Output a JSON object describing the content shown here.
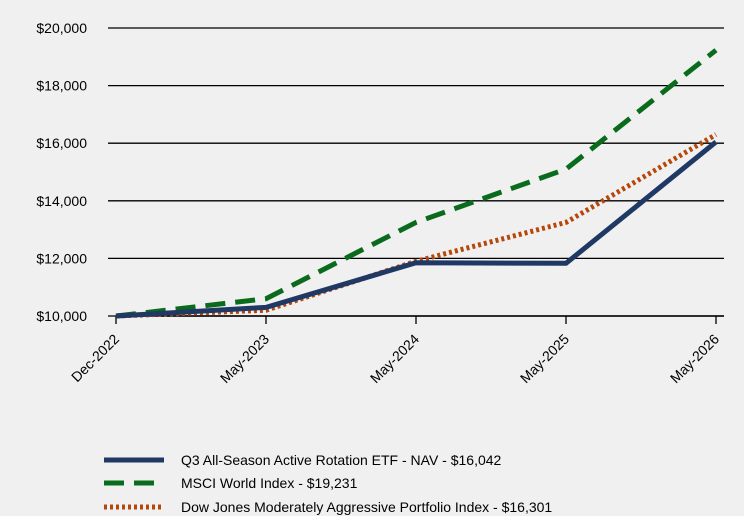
{
  "chart_data": {
    "type": "line",
    "title": "",
    "xlabel": "",
    "ylabel": "",
    "categories": [
      "Dec-2022",
      "May-2023",
      "May-2024",
      "May-2025",
      "May-2026"
    ],
    "y_ticks": [
      10000,
      12000,
      14000,
      16000,
      18000,
      20000
    ],
    "y_tick_labels": [
      "$10,000",
      "$12,000",
      "$14,000",
      "$16,000",
      "$18,000",
      "$20,000"
    ],
    "ylim": [
      10000,
      20000
    ],
    "grid": "horizontal",
    "legend_position": "bottom",
    "series": [
      {
        "name": "Q3 All-Season Active Rotation ETF - NAV - $16,042",
        "values": [
          10000,
          10300,
          11850,
          11830,
          16042
        ],
        "color": "#1f3864",
        "style": "solid"
      },
      {
        "name": "MSCI World Index - $19,231",
        "values": [
          10000,
          10600,
          13250,
          15100,
          19231
        ],
        "color": "#0a6b1c",
        "style": "dashed"
      },
      {
        "name": "Dow Jones Moderately Aggressive Portfolio Index - $16,301",
        "values": [
          10000,
          10200,
          11900,
          13250,
          16301
        ],
        "color": "#b5470b",
        "style": "dotted"
      }
    ]
  }
}
